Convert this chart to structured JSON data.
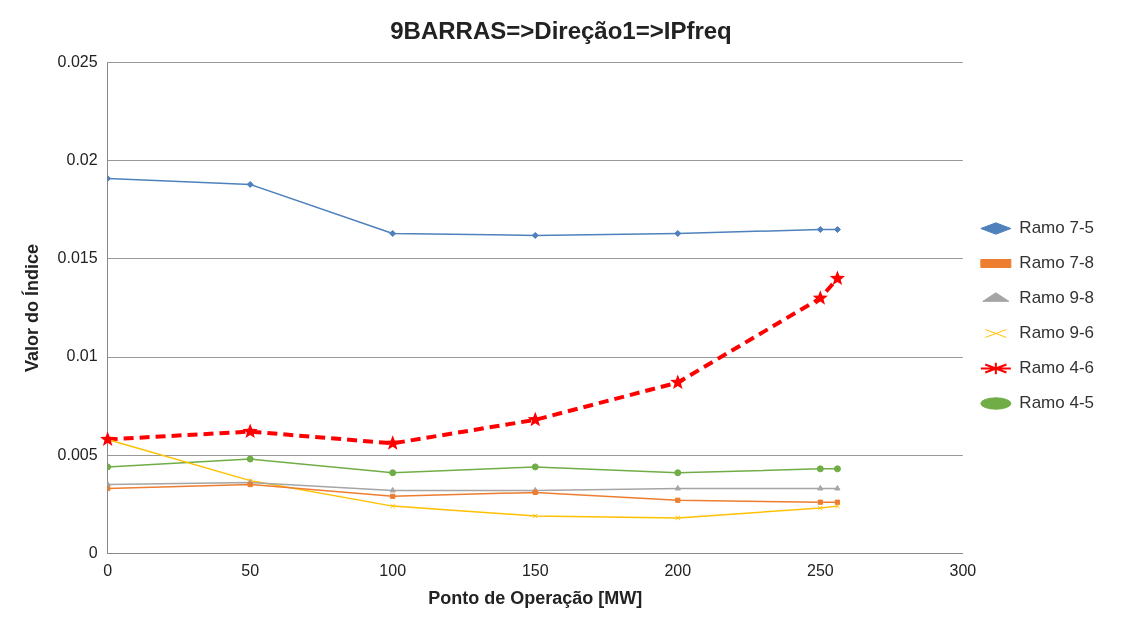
{
  "chart_data": {
    "type": "line",
    "title": "9BARRAS=>Direção1=>IPfreq",
    "xlabel": "Ponto de Operação [MW]",
    "ylabel": "Valor do Índice",
    "x": [
      0,
      50,
      100,
      150,
      200,
      250,
      256
    ],
    "xlim": [
      0,
      300
    ],
    "xticks": [
      0,
      50,
      100,
      150,
      200,
      250,
      300
    ],
    "ylim": [
      0,
      0.025
    ],
    "yticks": [
      0,
      0.005,
      0.01,
      0.015,
      0.02,
      0.025
    ],
    "grid": "y",
    "legend": "right",
    "series": [
      {
        "name": "Ramo 7-5",
        "color": "#4f81bd",
        "marker": "diamond",
        "values": [
          0.0191,
          0.0188,
          0.0163,
          0.0162,
          0.0163,
          0.0165,
          0.0165
        ]
      },
      {
        "name": "Ramo 7-8",
        "color": "#ed7d31",
        "marker": "square",
        "values": [
          0.0033,
          0.0035,
          0.0029,
          0.0031,
          0.0027,
          0.0026,
          0.0026
        ]
      },
      {
        "name": "Ramo 9-8",
        "color": "#a5a5a5",
        "marker": "triangle",
        "values": [
          0.0035,
          0.0036,
          0.0032,
          0.0032,
          0.0033,
          0.0033,
          0.0033
        ]
      },
      {
        "name": "Ramo 9-6",
        "color": "#ffc000",
        "marker": "cross",
        "values": [
          0.0058,
          0.0037,
          0.0024,
          0.0019,
          0.0018,
          0.0023,
          0.0024
        ]
      },
      {
        "name": "Ramo 4-6",
        "color": "#ff0000",
        "marker": "star",
        "line_style": "dashed",
        "values": [
          0.0058,
          0.0062,
          0.0056,
          0.0068,
          0.0087,
          0.013,
          0.014
        ]
      },
      {
        "name": "Ramo 4-5",
        "color": "#70ad47",
        "marker": "circle",
        "values": [
          0.0044,
          0.0048,
          0.0041,
          0.0044,
          0.0041,
          0.0043,
          0.0043
        ]
      }
    ]
  }
}
